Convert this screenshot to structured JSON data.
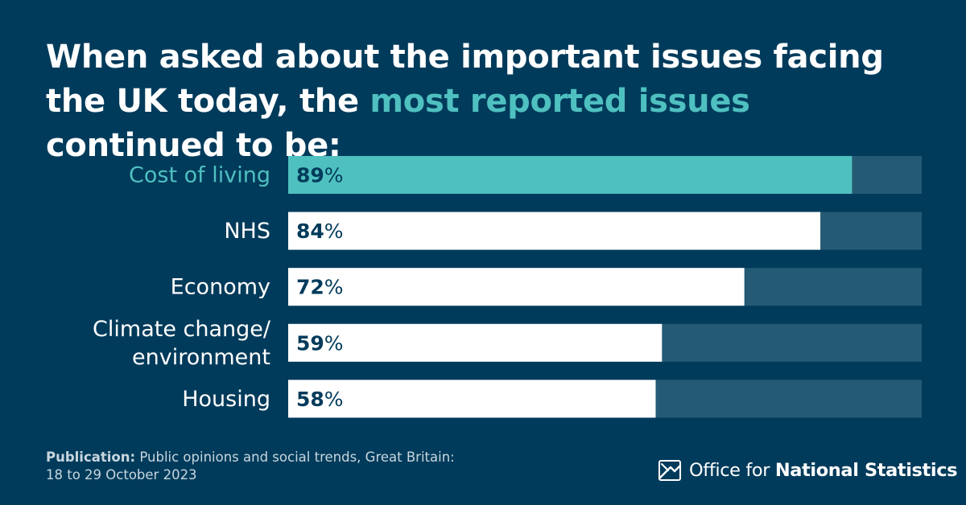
{
  "title": {
    "part1": "When asked about the important issues facing the UK today, the ",
    "highlight": "most reported issues",
    "part2": " continued to be:"
  },
  "colors": {
    "background": "#013b5b",
    "highlight": "#4fc0c0",
    "bar": "#ffffff",
    "track": "#245a74"
  },
  "chart_data": {
    "type": "bar",
    "orientation": "horizontal",
    "categories": [
      "Cost of living",
      "NHS",
      "Economy",
      "Climate change/ environment",
      "Housing"
    ],
    "category_lines": [
      [
        "Cost of living"
      ],
      [
        "NHS"
      ],
      [
        "Economy"
      ],
      [
        "Climate change/",
        "environment"
      ],
      [
        "Housing"
      ]
    ],
    "values": [
      89,
      84,
      72,
      59,
      58
    ],
    "value_suffix": "%",
    "xlim": [
      0,
      100
    ],
    "highlight_index": 0
  },
  "footer": {
    "label": "Publication:",
    "text": " Public opinions and social trends, Great Britain:",
    "line2": "18 to 29 October 2023"
  },
  "logo": {
    "name_light": "Office for ",
    "name_bold": "National Statistics"
  }
}
